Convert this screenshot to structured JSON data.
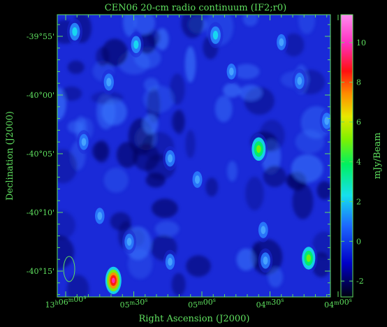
{
  "chart_data": {
    "type": "heatmap",
    "title": "CEN06  20-cm radio continuum (IF2;r0)",
    "xlabel": "Right Ascension (J2000)",
    "ylabel": "Declination (J2000)",
    "colorbar_label": "mJy/Beam",
    "x_ticks": [
      {
        "label_main": "13",
        "label_sup": "h",
        "label_main2": "06",
        "label_sup2": "m",
        "label_main3": "00",
        "label_sup3": "s",
        "ra_sec": 0
      },
      {
        "label_main": "05",
        "label_sup": "m",
        "label_main2": "30",
        "label_sup2": "s",
        "ra_sec": -30
      },
      {
        "label_main": "05",
        "label_sup": "m",
        "label_main2": "00",
        "label_sup2": "s",
        "ra_sec": -60
      },
      {
        "label_main": "04",
        "label_sup": "m",
        "label_main2": "30",
        "label_sup2": "s",
        "ra_sec": -90
      },
      {
        "label_main": "04",
        "label_sup": "m",
        "label_main2": "00",
        "label_sup2": "s",
        "ra_sec": -120
      }
    ],
    "y_ticks": [
      {
        "label": "-39°55'",
        "dec_arcmin": -2395
      },
      {
        "label": "-40°00'",
        "dec_arcmin": -2400
      },
      {
        "label": "-40°05'",
        "dec_arcmin": -2405
      },
      {
        "label": "-40°10'",
        "dec_arcmin": -2410
      },
      {
        "label": "-40°15'",
        "dec_arcmin": -2415
      }
    ],
    "colorbar_ticks": [
      -2,
      0,
      2,
      4,
      6,
      8,
      10
    ],
    "colorbar_range": [
      -2.8,
      11.4
    ],
    "sources": [
      {
        "ra_sec": -21,
        "dec_arcmin": -2415.8,
        "peak_mjy": 11.2
      },
      {
        "ra_sec": -85,
        "dec_arcmin": -2404.6,
        "peak_mjy": 5.2
      },
      {
        "ra_sec": -107,
        "dec_arcmin": -2413.9,
        "peak_mjy": 4.6
      },
      {
        "ra_sec": -4,
        "dec_arcmin": -2394.6,
        "peak_mjy": 2.6
      },
      {
        "ra_sec": -15,
        "dec_arcmin": -2410.3,
        "peak_mjy": 1.5
      },
      {
        "ra_sec": -31,
        "dec_arcmin": -2395.7,
        "peak_mjy": 2.3
      },
      {
        "ra_sec": -19,
        "dec_arcmin": -2398.9,
        "peak_mjy": 2.2
      },
      {
        "ra_sec": -66,
        "dec_arcmin": -2394.9,
        "peak_mjy": 2.6
      },
      {
        "ra_sec": -46,
        "dec_arcmin": -2405.4,
        "peak_mjy": 1.8
      },
      {
        "ra_sec": -58,
        "dec_arcmin": -2407.2,
        "peak_mjy": 1.9
      },
      {
        "ra_sec": -87,
        "dec_arcmin": -2411.5,
        "peak_mjy": 1.6
      },
      {
        "ra_sec": -88,
        "dec_arcmin": -2414.1,
        "peak_mjy": 1.6
      },
      {
        "ra_sec": -46,
        "dec_arcmin": -2414.2,
        "peak_mjy": 1.3
      },
      {
        "ra_sec": -103,
        "dec_arcmin": -2398.8,
        "peak_mjy": 1.6
      },
      {
        "ra_sec": -95,
        "dec_arcmin": -2395.5,
        "peak_mjy": 1.4
      },
      {
        "ra_sec": -115,
        "dec_arcmin": -2402.2,
        "peak_mjy": 1.5
      },
      {
        "ra_sec": -28,
        "dec_arcmin": -2412.5,
        "peak_mjy": 1.4
      },
      {
        "ra_sec": -8,
        "dec_arcmin": -2404.0,
        "peak_mjy": 1.3
      },
      {
        "ra_sec": -73,
        "dec_arcmin": -2398.0,
        "peak_mjy": 1.3
      }
    ],
    "beam": {
      "label": "synthesized beam"
    }
  }
}
